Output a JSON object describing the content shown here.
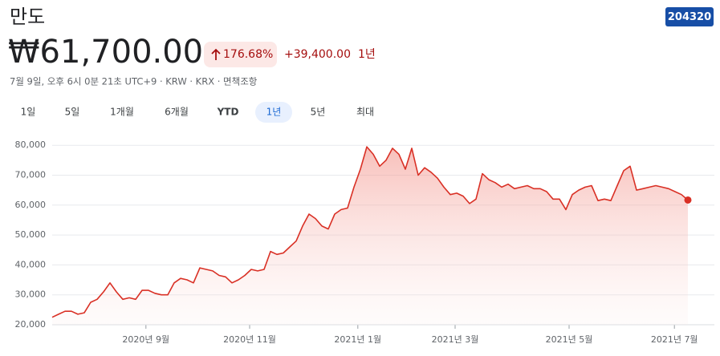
{
  "header": {
    "title": "만도",
    "ticker": "204320",
    "price": "₩61,700.00",
    "change_pct": "176.68%",
    "change_abs": "+39,400.00",
    "period": "1년",
    "meta": "7월 9일, 오후 6시 0분 21초 UTC+9 · KRW · KRX · 면책조항"
  },
  "ranges": [
    "1일",
    "5일",
    "1개월",
    "6개월",
    "YTD",
    "1년",
    "5년",
    "최대"
  ],
  "selected_range": 5,
  "chart_data": {
    "type": "line",
    "series": [
      {
        "color": "#d93025",
        "values": [
          22500,
          23500,
          24500,
          24500,
          23500,
          24000,
          27500,
          28500,
          31000,
          34000,
          31000,
          28500,
          29000,
          28500,
          31500,
          31500,
          30500,
          30000,
          30000,
          34000,
          35500,
          35000,
          34000,
          39000,
          38500,
          38000,
          36500,
          36000,
          34000,
          35000,
          36500,
          38500,
          38000,
          38500,
          44500,
          43500,
          44000,
          46000,
          48000,
          53000,
          57000,
          55500,
          53000,
          52000,
          57000,
          58500,
          59000,
          66000,
          72000,
          79500,
          77000,
          73000,
          75000,
          79000,
          77000,
          72000,
          79000,
          70000,
          72500,
          71000,
          69000,
          66000,
          63500,
          64000,
          63000,
          60500,
          62000,
          70500,
          68500,
          67500,
          66000,
          67000,
          65500,
          66000,
          66500,
          65500,
          65500,
          64500,
          62000,
          62000,
          58500,
          63500,
          65000,
          66000,
          66500,
          61500,
          62000,
          61500,
          66500,
          71500,
          73000,
          65000,
          65500,
          66000,
          66500,
          66000,
          65500,
          64500,
          63500,
          61700
        ]
      }
    ],
    "xlim": [
      0,
      99
    ],
    "xticks": [
      {
        "value": 14.6,
        "label": "2020년 9월"
      },
      {
        "value": 30.75,
        "label": "2020년 11월"
      },
      {
        "value": 47.6,
        "label": "2021년 1월"
      },
      {
        "value": 62.75,
        "label": "2021년 3월"
      },
      {
        "value": 80.5,
        "label": "2021년 5월"
      },
      {
        "value": 96.9,
        "label": "2021년 7월"
      }
    ],
    "ylim": [
      20000,
      83000
    ],
    "yticks": [
      {
        "value": 20000,
        "label": "20,000"
      },
      {
        "value": 30000,
        "label": "30,000"
      },
      {
        "value": 40000,
        "label": "40,000"
      },
      {
        "value": 50000,
        "label": "50,000"
      },
      {
        "value": 60000,
        "label": "60,000"
      },
      {
        "value": 70000,
        "label": "70,000"
      },
      {
        "value": 80000,
        "label": "80,000"
      }
    ],
    "grid": true
  }
}
